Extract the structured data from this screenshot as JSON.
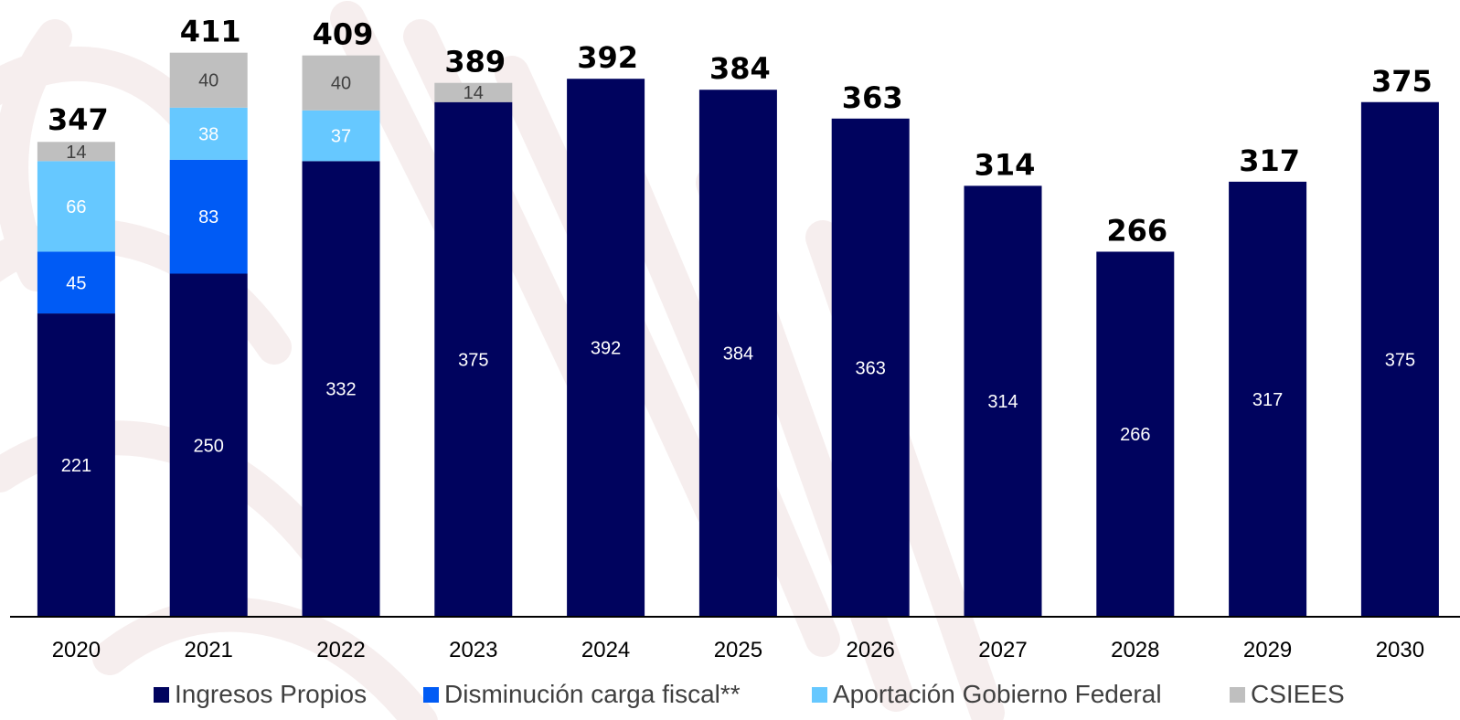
{
  "chart_data": {
    "type": "bar",
    "stacked": true,
    "categories": [
      "2020",
      "2021",
      "2022",
      "2023",
      "2024",
      "2025",
      "2026",
      "2027",
      "2028",
      "2029",
      "2030"
    ],
    "series": [
      {
        "name": "Ingresos Propios",
        "color": "#00035e",
        "label_color": "#ffffff",
        "values": [
          221,
          250,
          332,
          375,
          392,
          384,
          363,
          314,
          266,
          317,
          375
        ]
      },
      {
        "name": "Disminución carga fiscal**",
        "color": "#005bf5",
        "label_color": "#ffffff",
        "values": [
          45,
          83,
          null,
          null,
          null,
          null,
          null,
          null,
          null,
          null,
          null
        ]
      },
      {
        "name": "Aportación Gobierno Federal",
        "color": "#66c8ff",
        "label_color": "#ffffff",
        "values": [
          66,
          38,
          37,
          null,
          null,
          null,
          null,
          null,
          null,
          null,
          null
        ]
      },
      {
        "name": "CSIEES",
        "color": "#bfbfbf",
        "label_color": "#404040",
        "values": [
          14,
          40,
          40,
          14,
          null,
          null,
          null,
          null,
          null,
          null,
          null
        ]
      }
    ],
    "totals": [
      347,
      411,
      409,
      389,
      392,
      384,
      363,
      314,
      266,
      317,
      375
    ],
    "ylim": [
      0,
      440
    ],
    "grid": false,
    "legend": "bottom",
    "title": "",
    "xlabel": "",
    "ylabel": ""
  }
}
